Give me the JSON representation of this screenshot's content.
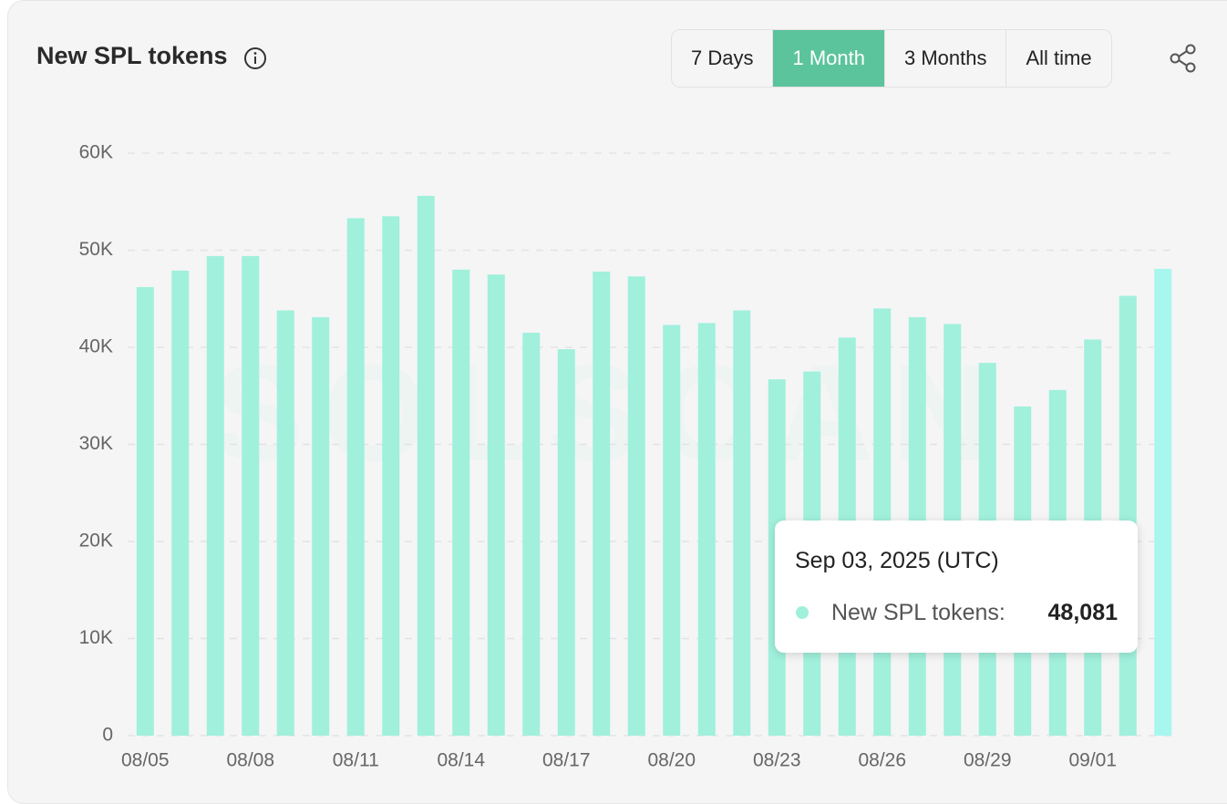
{
  "header": {
    "title": "New SPL tokens",
    "ranges": [
      "7 Days",
      "1 Month",
      "3 Months",
      "All time"
    ],
    "selected_range": "1 Month"
  },
  "chart_data": {
    "type": "bar",
    "watermark": "SOLSCAN",
    "categories": [
      "08/05",
      null,
      null,
      "08/08",
      null,
      null,
      "08/11",
      null,
      null,
      "08/14",
      null,
      null,
      "08/17",
      null,
      null,
      "08/20",
      null,
      null,
      "08/23",
      null,
      null,
      "08/26",
      null,
      null,
      "08/29",
      null,
      null,
      "09/01",
      null,
      null
    ],
    "series": [
      {
        "name": "New SPL tokens",
        "color": "#a0f0dc",
        "highlight_color": "#a8f7ef",
        "values": [
          46200,
          47900,
          49400,
          49400,
          43800,
          43100,
          53300,
          53500,
          55600,
          48000,
          47500,
          41500,
          39800,
          47800,
          47300,
          42300,
          42500,
          43800,
          36700,
          37500,
          41000,
          44000,
          43100,
          42400,
          38400,
          33900,
          35600,
          40800,
          45300,
          48081
        ]
      }
    ],
    "ylim": [
      0,
      60000
    ],
    "yticks": [
      0,
      {
        "value": 10000,
        "label": "10K"
      },
      {
        "value": 20000,
        "label": "20K"
      },
      {
        "value": 30000,
        "label": "30K"
      },
      {
        "value": 40000,
        "label": "40K"
      },
      {
        "value": 50000,
        "label": "50K"
      },
      {
        "value": 60000,
        "label": "60K"
      }
    ],
    "grid": true,
    "tooltip": {
      "title": "Sep 03, 2025 (UTC)",
      "label": "New SPL tokens:",
      "value_label": "48,081"
    }
  }
}
